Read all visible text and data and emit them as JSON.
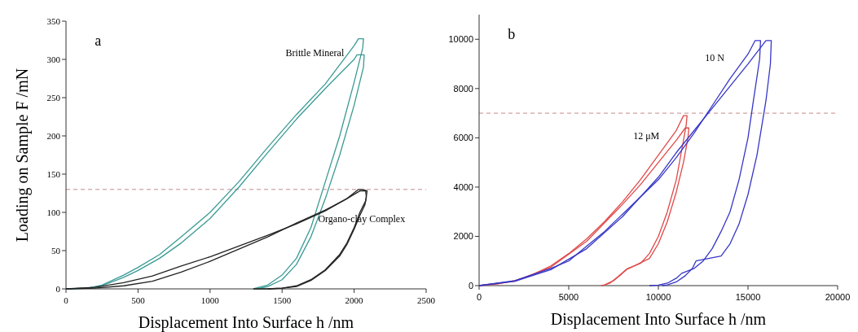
{
  "chart_data": [
    {
      "type": "line",
      "xlabel": "Displacement Into Surface  h /nm",
      "ylabel": "Loading on Sample  F /mN",
      "xlim": [
        0,
        2500
      ],
      "ylim": [
        0,
        350
      ],
      "xticks": [
        0,
        500,
        1000,
        1500,
        2000,
        2500
      ],
      "yticks": [
        0,
        50,
        100,
        150,
        200,
        250,
        300,
        350
      ],
      "grid": false,
      "line_style": "solid",
      "marker": "none",
      "annotations": [
        "a",
        "Brittle Mineral",
        "Organo-clay Complex"
      ],
      "ref_lines": [
        {
          "axis": "y",
          "value": 130,
          "color": "#c48a8a",
          "line_style": "dashed"
        }
      ],
      "series": [
        {
          "color": "#3a9a94",
          "x": [
            0,
            150,
            250,
            400,
            500,
            650,
            800,
            1000,
            1200,
            1400,
            1600,
            1800,
            2000,
            2030,
            2065,
            2060,
            2000,
            1900,
            1800,
            1700,
            1600,
            1500,
            1400,
            1300
          ],
          "values": [
            0,
            1,
            5,
            18,
            28,
            45,
            68,
            100,
            140,
            185,
            228,
            268,
            318,
            327,
            327,
            315,
            270,
            200,
            140,
            80,
            40,
            18,
            5,
            0
          ]
        },
        {
          "color": "#3a9a94",
          "x": [
            0,
            150,
            250,
            400,
            500,
            650,
            800,
            1000,
            1200,
            1400,
            1600,
            1800,
            2000,
            2020,
            2070,
            2065,
            2000,
            1900,
            1800,
            1700,
            1600,
            1500,
            1400,
            1330
          ],
          "values": [
            0,
            1,
            4,
            15,
            24,
            40,
            60,
            92,
            133,
            178,
            222,
            262,
            300,
            306,
            306,
            290,
            240,
            175,
            118,
            68,
            32,
            12,
            3,
            0
          ]
        },
        {
          "color": "#222222",
          "x": [
            0,
            200,
            400,
            600,
            800,
            1000,
            1200,
            1400,
            1600,
            1800,
            1950,
            2030,
            2060,
            2090,
            2080,
            2040,
            2000,
            1950,
            1900,
            1800,
            1700,
            1600,
            1500,
            1400,
            1300
          ],
          "values": [
            0,
            2,
            8,
            17,
            30,
            42,
            56,
            70,
            85,
            102,
            118,
            130,
            130,
            128,
            115,
            100,
            80,
            60,
            45,
            25,
            12,
            4,
            1,
            0,
            0
          ]
        },
        {
          "color": "#222222",
          "x": [
            0,
            200,
            400,
            600,
            800,
            1000,
            1200,
            1400,
            1600,
            1800,
            1950,
            2040,
            2080,
            2085,
            2075,
            2040,
            2000,
            1950,
            1900,
            1800,
            1700,
            1600,
            1500,
            1400
          ],
          "values": [
            0,
            1,
            4,
            10,
            22,
            36,
            52,
            68,
            86,
            103,
            118,
            128,
            128,
            120,
            110,
            96,
            78,
            58,
            43,
            24,
            11,
            3,
            1,
            0
          ]
        }
      ]
    },
    {
      "type": "line",
      "xlabel": "Displacement Into Surface  h /nm",
      "xlim": [
        0,
        20000
      ],
      "ylim": [
        0,
        11000
      ],
      "xticks": [
        0,
        5000,
        10000,
        15000,
        20000
      ],
      "yticks": [
        0,
        2000,
        4000,
        6000,
        8000,
        10000
      ],
      "grid": false,
      "line_style": "solid",
      "marker": "none",
      "annotations": [
        "b",
        "10 N",
        "12 μM"
      ],
      "ref_lines": [
        {
          "axis": "y",
          "value": 7000,
          "color": "#c48a8a",
          "line_style": "dashed"
        }
      ],
      "series": [
        {
          "color": "#e04848",
          "x": [
            0,
            1000,
            2000,
            3000,
            4000,
            5000,
            6000,
            7000,
            8000,
            9000,
            10000,
            11000,
            11400,
            11600,
            11550,
            11300,
            11000,
            10500,
            10000,
            9500,
            9000,
            8300,
            8000,
            7500,
            7000,
            6800
          ],
          "values": [
            0,
            60,
            200,
            450,
            800,
            1300,
            1900,
            2600,
            3400,
            4300,
            5300,
            6300,
            6900,
            6900,
            6500,
            5500,
            4300,
            3000,
            2000,
            1300,
            900,
            700,
            500,
            200,
            30,
            0
          ]
        },
        {
          "color": "#e04848",
          "x": [
            0,
            2000,
            4000,
            6000,
            8000,
            9000,
            10000,
            11000,
            11500,
            11700,
            11650,
            11400,
            11000,
            10500,
            10000,
            9500,
            8500,
            8200,
            7800,
            7300,
            6900
          ],
          "values": [
            0,
            180,
            750,
            1800,
            3300,
            4100,
            5000,
            5900,
            6400,
            6400,
            6000,
            5000,
            3800,
            2600,
            1700,
            1100,
            750,
            650,
            400,
            100,
            0
          ]
        },
        {
          "color": "#3636c8",
          "x": [
            0,
            2000,
            4000,
            5000,
            6000,
            7000,
            8000,
            9000,
            10000,
            11000,
            12000,
            13000,
            14000,
            15000,
            15400,
            15700,
            15650,
            15300,
            15000,
            14500,
            14000,
            13500,
            13000,
            12500,
            12000,
            11300,
            11000,
            10500,
            10000,
            9500
          ],
          "values": [
            0,
            200,
            700,
            1000,
            1600,
            2200,
            2900,
            3600,
            4300,
            5200,
            6200,
            7300,
            8400,
            9400,
            9950,
            9950,
            9200,
            7500,
            6000,
            4300,
            3000,
            2200,
            1500,
            1000,
            700,
            500,
            300,
            100,
            20,
            0
          ]
        },
        {
          "color": "#3636c8",
          "x": [
            0,
            2000,
            4000,
            6000,
            8000,
            10000,
            11000,
            12000,
            13000,
            14000,
            15000,
            16000,
            16300,
            16250,
            16000,
            15500,
            15000,
            14500,
            14000,
            13500,
            12100,
            11900,
            11500,
            11000,
            10500,
            10200
          ],
          "values": [
            0,
            180,
            650,
            1500,
            2800,
            4400,
            5400,
            6300,
            7200,
            8100,
            9000,
            9950,
            9950,
            9000,
            7500,
            5300,
            3700,
            2500,
            1700,
            1200,
            1000,
            700,
            400,
            150,
            30,
            0
          ]
        }
      ]
    }
  ]
}
